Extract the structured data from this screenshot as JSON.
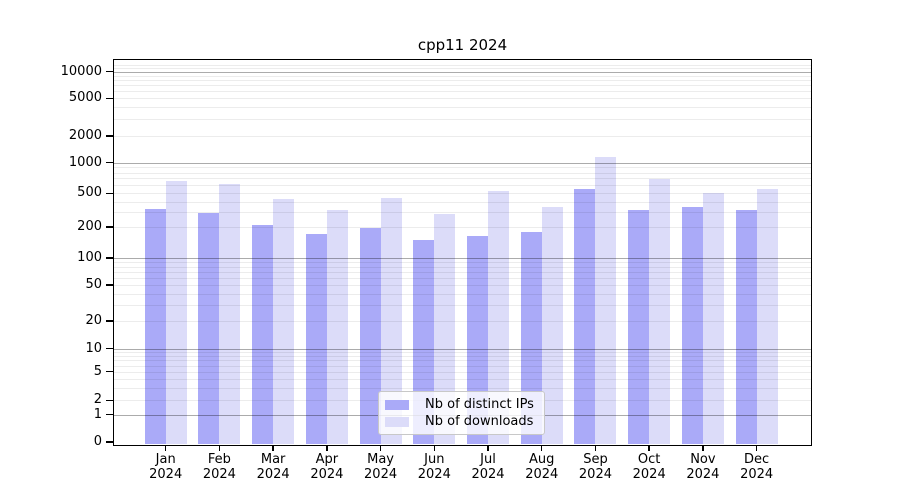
{
  "title": "cpp11 2024",
  "chart_data": {
    "type": "bar",
    "title": "cpp11 2024",
    "scale_y": "symlog",
    "grid": true,
    "legend_position": "bottom-center",
    "xlabel": "",
    "ylabel": "",
    "categories": [
      "Jan",
      "Feb",
      "Mar",
      "Apr",
      "May",
      "Jun",
      "Jul",
      "Aug",
      "Sep",
      "Oct",
      "Nov",
      "Dec"
    ],
    "x_year_label": "2024",
    "y_ticks": [
      0,
      1,
      2,
      5,
      10,
      20,
      50,
      100,
      200,
      500,
      1000,
      2000,
      5000,
      10000
    ],
    "ylim": [
      0,
      13000
    ],
    "series": [
      {
        "name": "Nb of distinct IPs",
        "color": "#aaaaf8",
        "values": [
          330,
          295,
          210,
          170,
          195,
          150,
          165,
          180,
          550,
          320,
          340,
          315
        ]
      },
      {
        "name": "Nb of downloads",
        "color": "#dcdcf9",
        "values": [
          660,
          620,
          430,
          320,
          440,
          285,
          530,
          345,
          1150,
          690,
          505,
          545
        ]
      }
    ]
  },
  "colors": {
    "major_grid": "#b0b0b0",
    "minor_grid": "#ececec",
    "axis": "#000000",
    "legend_border": "#c8c8c8"
  }
}
